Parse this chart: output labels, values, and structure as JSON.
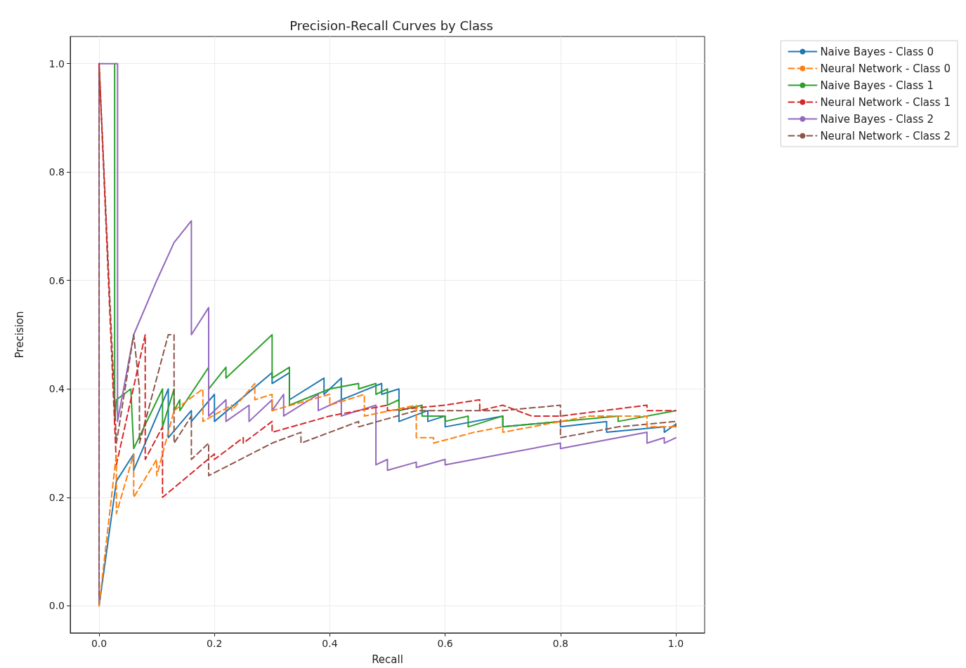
{
  "chart_data": {
    "type": "line",
    "title": "Precision-Recall Curves by Class",
    "xlabel": "Recall",
    "ylabel": "Precision",
    "xlim": [
      -0.05,
      1.05
    ],
    "ylim": [
      -0.05,
      1.05
    ],
    "xticks": [
      {
        "value": 0,
        "label": "0.0"
      },
      {
        "value": 0.2,
        "label": "0.2"
      },
      {
        "value": 0.4,
        "label": "0.4"
      },
      {
        "value": 0.6,
        "label": "0.6"
      },
      {
        "value": 0.8,
        "label": "0.8"
      },
      {
        "value": 1,
        "label": "1.0"
      }
    ],
    "yticks": [
      {
        "value": 0,
        "label": "0.0"
      },
      {
        "value": 0.2,
        "label": "0.2"
      },
      {
        "value": 0.4,
        "label": "0.4"
      },
      {
        "value": 0.6,
        "label": "0.6"
      },
      {
        "value": 0.8,
        "label": "0.8"
      },
      {
        "value": 1,
        "label": "1.0"
      }
    ],
    "grid": true,
    "legend": "top right",
    "marker": "none",
    "series": [
      {
        "name": "Naive Bayes - Class 0",
        "color": "#1f77b4",
        "line_style": "solid",
        "x": [
          0,
          0.03,
          0.06,
          0.06,
          0.12,
          0.12,
          0.16,
          0.16,
          0.2,
          0.2,
          0.3,
          0.3,
          0.33,
          0.33,
          0.39,
          0.39,
          0.42,
          0.42,
          0.49,
          0.49,
          0.52,
          0.52,
          0.57,
          0.57,
          0.6,
          0.6,
          0.7,
          0.7,
          0.8,
          0.8,
          0.88,
          0.88,
          0.98,
          0.98,
          1.0
        ],
        "values": [
          0,
          0.23,
          0.28,
          0.25,
          0.4,
          0.31,
          0.36,
          0.34,
          0.39,
          0.34,
          0.43,
          0.41,
          0.43,
          0.38,
          0.42,
          0.39,
          0.42,
          0.38,
          0.41,
          0.39,
          0.4,
          0.34,
          0.36,
          0.34,
          0.35,
          0.33,
          0.35,
          0.33,
          0.34,
          0.33,
          0.34,
          0.32,
          0.33,
          0.32,
          0.335
        ]
      },
      {
        "name": "Neural Network - Class 0",
        "color": "#ff7f0e",
        "line_style": "dashed",
        "x": [
          0,
          0.03,
          0.03,
          0.06,
          0.06,
          0.1,
          0.1,
          0.13,
          0.18,
          0.18,
          0.23,
          0.23,
          0.27,
          0.27,
          0.3,
          0.3,
          0.4,
          0.4,
          0.46,
          0.46,
          0.55,
          0.55,
          0.58,
          0.58,
          0.65,
          0.7,
          0.7,
          0.85,
          0.95,
          0.95,
          1.0
        ],
        "values": [
          0,
          0.28,
          0.17,
          0.28,
          0.2,
          0.27,
          0.24,
          0.36,
          0.4,
          0.34,
          0.37,
          0.36,
          0.41,
          0.38,
          0.39,
          0.36,
          0.39,
          0.37,
          0.39,
          0.35,
          0.37,
          0.31,
          0.31,
          0.3,
          0.32,
          0.33,
          0.32,
          0.35,
          0.35,
          0.33,
          0.33
        ]
      },
      {
        "name": "Naive Bayes - Class 1",
        "color": "#2ca02c",
        "line_style": "solid",
        "x": [
          0.027,
          0.027,
          0.03,
          0.055,
          0.06,
          0.11,
          0.11,
          0.13,
          0.13,
          0.14,
          0.14,
          0.19,
          0.19,
          0.22,
          0.22,
          0.3,
          0.3,
          0.33,
          0.33,
          0.4,
          0.45,
          0.45,
          0.48,
          0.48,
          0.5,
          0.5,
          0.52,
          0.52,
          0.56,
          0.56,
          0.6,
          0.6,
          0.64,
          0.64,
          0.7,
          0.7,
          0.9,
          0.9,
          1.0
        ],
        "values": [
          1,
          0.34,
          0.38,
          0.4,
          0.29,
          0.4,
          0.33,
          0.4,
          0.36,
          0.38,
          0.36,
          0.44,
          0.4,
          0.44,
          0.42,
          0.5,
          0.42,
          0.44,
          0.37,
          0.4,
          0.41,
          0.4,
          0.41,
          0.39,
          0.4,
          0.37,
          0.38,
          0.36,
          0.37,
          0.35,
          0.35,
          0.34,
          0.35,
          0.33,
          0.35,
          0.33,
          0.35,
          0.34,
          0.36
        ]
      },
      {
        "name": "Neural Network - Class 1",
        "color": "#d62728",
        "line_style": "dashed",
        "x": [
          0,
          0.03,
          0.08,
          0.08,
          0.11,
          0.11,
          0.2,
          0.2,
          0.25,
          0.25,
          0.3,
          0.3,
          0.4,
          0.45,
          0.5,
          0.5,
          0.6,
          0.66,
          0.66,
          0.7,
          0.75,
          0.8,
          0.95,
          0.95,
          1.0
        ],
        "values": [
          1,
          0.26,
          0.5,
          0.27,
          0.33,
          0.2,
          0.28,
          0.27,
          0.31,
          0.3,
          0.34,
          0.32,
          0.35,
          0.36,
          0.37,
          0.36,
          0.37,
          0.38,
          0.36,
          0.37,
          0.35,
          0.35,
          0.37,
          0.36,
          0.36
        ]
      },
      {
        "name": "Naive Bayes - Class 2",
        "color": "#9467bd",
        "line_style": "solid",
        "x": [
          0,
          0,
          0.032,
          0.032,
          0.06,
          0.1,
          0.13,
          0.16,
          0.16,
          0.19,
          0.19,
          0.22,
          0.22,
          0.26,
          0.26,
          0.3,
          0.3,
          0.32,
          0.32,
          0.38,
          0.38,
          0.42,
          0.42,
          0.48,
          0.48,
          0.5,
          0.5,
          0.55,
          0.55,
          0.6,
          0.6,
          0.7,
          0.8,
          0.8,
          0.9,
          0.95,
          0.95,
          0.98,
          0.98,
          1.0
        ],
        "values": [
          0,
          1,
          1,
          0.34,
          0.5,
          0.6,
          0.67,
          0.71,
          0.5,
          0.55,
          0.35,
          0.38,
          0.34,
          0.37,
          0.34,
          0.38,
          0.36,
          0.39,
          0.35,
          0.39,
          0.36,
          0.38,
          0.35,
          0.37,
          0.26,
          0.27,
          0.25,
          0.265,
          0.255,
          0.27,
          0.26,
          0.28,
          0.3,
          0.29,
          0.31,
          0.32,
          0.3,
          0.31,
          0.3,
          0.31
        ]
      },
      {
        "name": "Neural Network - Class 2",
        "color": "#8c564b",
        "line_style": "dashed",
        "x": [
          0,
          0,
          0.03,
          0.06,
          0.07,
          0.07,
          0.12,
          0.13,
          0.13,
          0.16,
          0.16,
          0.19,
          0.19,
          0.3,
          0.35,
          0.35,
          0.45,
          0.45,
          0.55,
          0.6,
          0.7,
          0.8,
          0.8,
          0.9,
          1.0,
          1.0
        ],
        "values": [
          0,
          1,
          0.3,
          0.5,
          0.4,
          0.3,
          0.5,
          0.5,
          0.3,
          0.35,
          0.27,
          0.3,
          0.24,
          0.3,
          0.32,
          0.3,
          0.34,
          0.33,
          0.36,
          0.36,
          0.36,
          0.37,
          0.31,
          0.33,
          0.34,
          0.33
        ]
      }
    ]
  }
}
